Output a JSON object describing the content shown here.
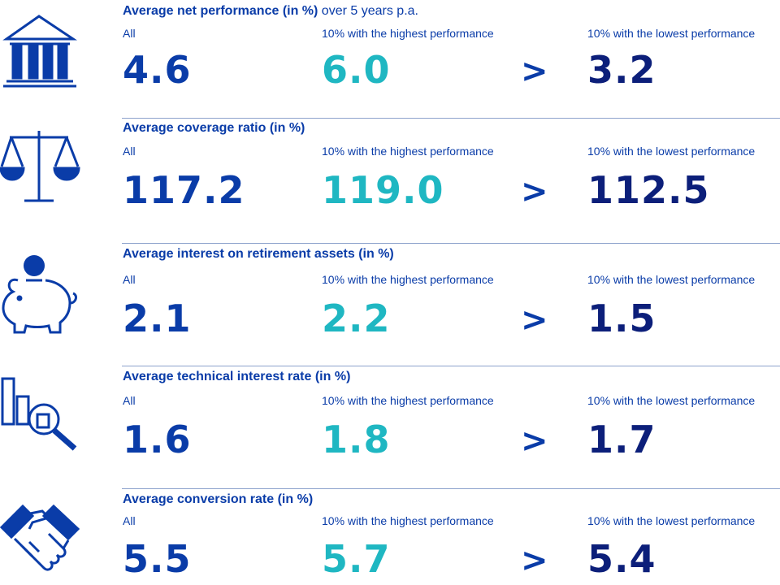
{
  "labels": {
    "all": "All",
    "high": "10% with the highest performance",
    "low": "10% with the lowest performance",
    "comparator": ">"
  },
  "colors": {
    "primary": "#0a3ca8",
    "highlight": "#1fb7c2",
    "dark": "#0c1f7a",
    "divider": "#8da2cc"
  },
  "rows": [
    {
      "icon": "bank-icon",
      "title": "Average net performance (in %)",
      "title_suffix": " over 5 years p.a.",
      "all": "4.6",
      "high": "6.0",
      "low": "3.2"
    },
    {
      "icon": "scales-icon",
      "title": "Average coverage ratio (in %)",
      "title_suffix": "",
      "all": "117.2",
      "high": "119.0",
      "low": "112.5"
    },
    {
      "icon": "piggy-bank-icon",
      "title": "Average interest on retirement assets (in %)",
      "title_suffix": "",
      "all": "2.1",
      "high": "2.2",
      "low": "1.5"
    },
    {
      "icon": "chart-magnifier-icon",
      "title": "Average technical interest rate (in %)",
      "title_suffix": "",
      "all": "1.6",
      "high": "1.8",
      "low": "1.7"
    },
    {
      "icon": "handshake-icon",
      "title": "Average conversion rate (in %)",
      "title_suffix": "",
      "all": "5.5",
      "high": "5.7",
      "low": "5.4"
    }
  ]
}
